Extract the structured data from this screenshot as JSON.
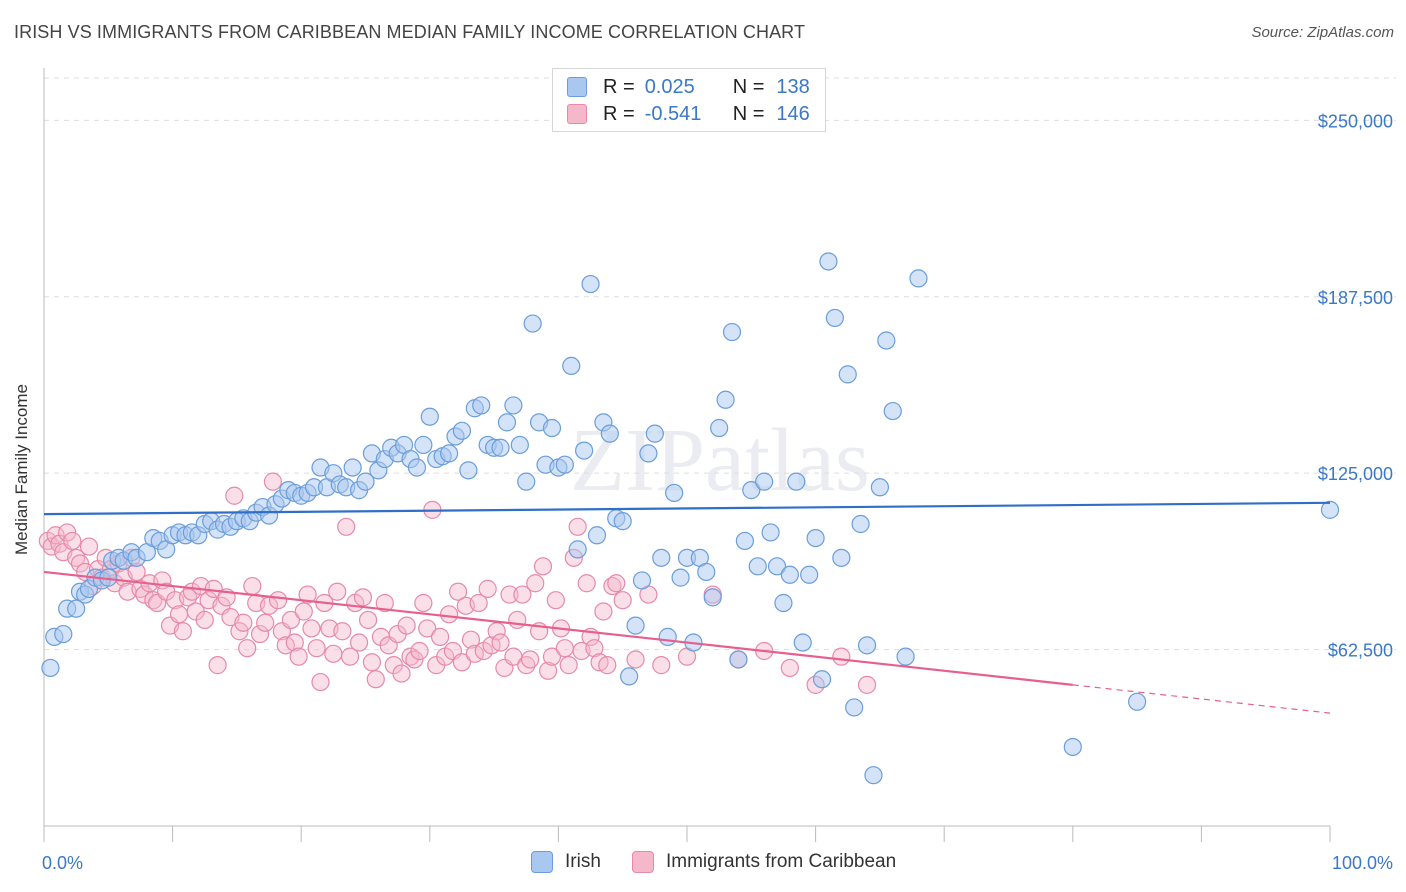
{
  "header": {
    "title": "IRISH VS IMMIGRANTS FROM CARIBBEAN MEDIAN FAMILY INCOME CORRELATION CHART",
    "source": "Source: ZipAtlas.com"
  },
  "legend_top": {
    "rows": [
      {
        "r_label": "R =",
        "r_value": "0.025",
        "n_label": "N =",
        "n_value": "138"
      },
      {
        "r_label": "R =",
        "r_value": "-0.541",
        "n_label": "N =",
        "n_value": "146"
      }
    ]
  },
  "legend_bottom": {
    "items": [
      {
        "label": "Irish"
      },
      {
        "label": "Immigrants from Caribbean"
      }
    ]
  },
  "colors": {
    "irish_fill": "#a9c8ef",
    "irish_stroke": "#6a9edb",
    "irish_line": "#2f6fc9",
    "carib_fill": "#f5b8cb",
    "carib_stroke": "#e68aa9",
    "carib_line": "#e65f8e",
    "tick_text": "#3a78c8",
    "grid": "#dddddd"
  },
  "watermark": "ZIPatlas",
  "chart_data": {
    "type": "scatter",
    "title": "IRISH VS IMMIGRANTS FROM CARIBBEAN MEDIAN FAMILY INCOME CORRELATION CHART",
    "xlabel": "",
    "ylabel": "Median Family Income",
    "xlim": [
      0,
      100
    ],
    "ylim": [
      0,
      265000
    ],
    "x_tick_labels": [
      "0.0%",
      "100.0%"
    ],
    "y_ticks": [
      62500,
      125000,
      187500,
      250000
    ],
    "y_tick_labels": [
      "$62,500",
      "$125,000",
      "$187,500",
      "$250,000"
    ],
    "grid": true,
    "legend_position": "top-center",
    "series": [
      {
        "name": "Irish",
        "r": 0.025,
        "n": 138,
        "trend": {
          "x": [
            0,
            100
          ],
          "y": [
            110500,
            114500
          ],
          "solid_until": 100
        },
        "points": [
          [
            0.5,
            56000
          ],
          [
            0.8,
            67000
          ],
          [
            1.5,
            68000
          ],
          [
            1.8,
            77000
          ],
          [
            2.5,
            77000
          ],
          [
            2.8,
            83000
          ],
          [
            3.2,
            82000
          ],
          [
            3.5,
            84000
          ],
          [
            4.0,
            88000
          ],
          [
            4.5,
            87000
          ],
          [
            5.0,
            88000
          ],
          [
            5.3,
            94000
          ],
          [
            5.8,
            95000
          ],
          [
            6.2,
            94000
          ],
          [
            6.8,
            97000
          ],
          [
            7.2,
            95000
          ],
          [
            8.0,
            97000
          ],
          [
            8.5,
            102000
          ],
          [
            9.0,
            101000
          ],
          [
            9.5,
            98000
          ],
          [
            10.0,
            103000
          ],
          [
            10.5,
            104000
          ],
          [
            11.0,
            103000
          ],
          [
            11.5,
            104000
          ],
          [
            12.0,
            103000
          ],
          [
            12.5,
            107000
          ],
          [
            13.0,
            108000
          ],
          [
            13.5,
            105000
          ],
          [
            14.0,
            107000
          ],
          [
            14.5,
            106000
          ],
          [
            15.0,
            108000
          ],
          [
            15.5,
            109000
          ],
          [
            16.0,
            108000
          ],
          [
            16.5,
            111000
          ],
          [
            17.0,
            113000
          ],
          [
            17.5,
            110000
          ],
          [
            18.0,
            114000
          ],
          [
            18.5,
            116000
          ],
          [
            19.0,
            119000
          ],
          [
            19.5,
            118000
          ],
          [
            20.0,
            117000
          ],
          [
            20.5,
            118000
          ],
          [
            21.0,
            120000
          ],
          [
            21.5,
            127000
          ],
          [
            22.0,
            120000
          ],
          [
            22.5,
            125000
          ],
          [
            23.0,
            121000
          ],
          [
            23.5,
            120000
          ],
          [
            24.0,
            127000
          ],
          [
            24.5,
            119000
          ],
          [
            25.0,
            122000
          ],
          [
            25.5,
            132000
          ],
          [
            26.0,
            126000
          ],
          [
            26.5,
            130000
          ],
          [
            27.0,
            134000
          ],
          [
            27.5,
            132000
          ],
          [
            28.0,
            135000
          ],
          [
            28.5,
            130000
          ],
          [
            29.0,
            127000
          ],
          [
            29.5,
            135000
          ],
          [
            30.0,
            145000
          ],
          [
            30.5,
            130000
          ],
          [
            31.0,
            131000
          ],
          [
            31.5,
            132000
          ],
          [
            32.0,
            138000
          ],
          [
            32.5,
            140000
          ],
          [
            33.0,
            126000
          ],
          [
            33.5,
            148000
          ],
          [
            34.0,
            149000
          ],
          [
            34.5,
            135000
          ],
          [
            35.0,
            134000
          ],
          [
            35.5,
            134000
          ],
          [
            36.0,
            143000
          ],
          [
            36.5,
            149000
          ],
          [
            37.0,
            135000
          ],
          [
            37.5,
            122000
          ],
          [
            38.0,
            178000
          ],
          [
            38.5,
            143000
          ],
          [
            39.0,
            128000
          ],
          [
            39.5,
            141000
          ],
          [
            40.0,
            127000
          ],
          [
            40.5,
            128000
          ],
          [
            41.0,
            163000
          ],
          [
            41.5,
            98000
          ],
          [
            42.0,
            133000
          ],
          [
            42.5,
            192000
          ],
          [
            43.0,
            103000
          ],
          [
            43.5,
            143000
          ],
          [
            44.0,
            139000
          ],
          [
            44.5,
            109000
          ],
          [
            45.0,
            108000
          ],
          [
            45.5,
            53000
          ],
          [
            46.0,
            71000
          ],
          [
            46.5,
            87000
          ],
          [
            47.0,
            132000
          ],
          [
            47.5,
            139000
          ],
          [
            48.0,
            95000
          ],
          [
            48.5,
            67000
          ],
          [
            49.0,
            118000
          ],
          [
            49.5,
            88000
          ],
          [
            50.0,
            95000
          ],
          [
            50.5,
            65000
          ],
          [
            51.0,
            95000
          ],
          [
            51.5,
            90000
          ],
          [
            52.0,
            81000
          ],
          [
            52.5,
            141000
          ],
          [
            53.0,
            151000
          ],
          [
            53.5,
            175000
          ],
          [
            54.0,
            59000
          ],
          [
            54.5,
            101000
          ],
          [
            55.0,
            119000
          ],
          [
            55.5,
            92000
          ],
          [
            56.0,
            122000
          ],
          [
            56.5,
            104000
          ],
          [
            57.0,
            92000
          ],
          [
            57.5,
            79000
          ],
          [
            58.0,
            89000
          ],
          [
            58.5,
            122000
          ],
          [
            59.0,
            65000
          ],
          [
            59.5,
            89000
          ],
          [
            60.0,
            102000
          ],
          [
            60.5,
            52000
          ],
          [
            61.0,
            200000
          ],
          [
            61.5,
            180000
          ],
          [
            62.0,
            95000
          ],
          [
            62.5,
            160000
          ],
          [
            63.0,
            42000
          ],
          [
            63.5,
            107000
          ],
          [
            64.0,
            64000
          ],
          [
            64.5,
            18000
          ],
          [
            65.0,
            120000
          ],
          [
            65.5,
            172000
          ],
          [
            66.0,
            147000
          ],
          [
            67.0,
            60000
          ],
          [
            68.0,
            194000
          ],
          [
            80.0,
            28000
          ],
          [
            85.0,
            44000
          ],
          [
            100.0,
            112000
          ]
        ]
      },
      {
        "name": "Immigrants from Caribbean",
        "r": -0.541,
        "n": 146,
        "trend": {
          "x": [
            0,
            100
          ],
          "y": [
            90000,
            40000
          ],
          "solid_until": 80
        },
        "points": [
          [
            0.3,
            101000
          ],
          [
            0.6,
            99000
          ],
          [
            0.9,
            103000
          ],
          [
            1.2,
            100000
          ],
          [
            1.5,
            97000
          ],
          [
            1.8,
            104000
          ],
          [
            2.2,
            101000
          ],
          [
            2.5,
            95000
          ],
          [
            2.8,
            93000
          ],
          [
            3.2,
            90000
          ],
          [
            3.5,
            99000
          ],
          [
            3.8,
            85000
          ],
          [
            4.2,
            91000
          ],
          [
            4.5,
            88000
          ],
          [
            4.8,
            95000
          ],
          [
            5.2,
            91000
          ],
          [
            5.5,
            86000
          ],
          [
            5.8,
            93000
          ],
          [
            6.2,
            88000
          ],
          [
            6.5,
            83000
          ],
          [
            6.8,
            95000
          ],
          [
            7.2,
            90000
          ],
          [
            7.5,
            84000
          ],
          [
            7.8,
            82000
          ],
          [
            8.2,
            86000
          ],
          [
            8.5,
            80000
          ],
          [
            8.8,
            79000
          ],
          [
            9.2,
            87000
          ],
          [
            9.5,
            83000
          ],
          [
            9.8,
            71000
          ],
          [
            10.2,
            80000
          ],
          [
            10.5,
            75000
          ],
          [
            10.8,
            69000
          ],
          [
            11.2,
            81000
          ],
          [
            11.5,
            83000
          ],
          [
            11.8,
            76000
          ],
          [
            12.2,
            85000
          ],
          [
            12.5,
            73000
          ],
          [
            12.8,
            80000
          ],
          [
            13.2,
            84000
          ],
          [
            13.5,
            57000
          ],
          [
            13.8,
            78000
          ],
          [
            14.2,
            81000
          ],
          [
            14.5,
            74000
          ],
          [
            14.8,
            117000
          ],
          [
            15.2,
            69000
          ],
          [
            15.5,
            72000
          ],
          [
            15.8,
            63000
          ],
          [
            16.2,
            85000
          ],
          [
            16.5,
            79000
          ],
          [
            16.8,
            68000
          ],
          [
            17.2,
            72000
          ],
          [
            17.5,
            78000
          ],
          [
            17.8,
            122000
          ],
          [
            18.2,
            80000
          ],
          [
            18.5,
            69000
          ],
          [
            18.8,
            64000
          ],
          [
            19.2,
            73000
          ],
          [
            19.5,
            65000
          ],
          [
            19.8,
            60000
          ],
          [
            20.2,
            76000
          ],
          [
            20.5,
            82000
          ],
          [
            20.8,
            70000
          ],
          [
            21.2,
            63000
          ],
          [
            21.5,
            51000
          ],
          [
            21.8,
            79000
          ],
          [
            22.2,
            70000
          ],
          [
            22.5,
            61000
          ],
          [
            22.8,
            83000
          ],
          [
            23.2,
            69000
          ],
          [
            23.5,
            106000
          ],
          [
            23.8,
            60000
          ],
          [
            24.2,
            79000
          ],
          [
            24.5,
            65000
          ],
          [
            24.8,
            81000
          ],
          [
            25.2,
            73000
          ],
          [
            25.5,
            58000
          ],
          [
            25.8,
            52000
          ],
          [
            26.2,
            67000
          ],
          [
            26.5,
            79000
          ],
          [
            26.8,
            64000
          ],
          [
            27.2,
            57000
          ],
          [
            27.5,
            68000
          ],
          [
            27.8,
            54000
          ],
          [
            28.2,
            71000
          ],
          [
            28.5,
            60000
          ],
          [
            28.8,
            59000
          ],
          [
            29.2,
            62000
          ],
          [
            29.5,
            79000
          ],
          [
            29.8,
            70000
          ],
          [
            30.2,
            112000
          ],
          [
            30.5,
            57000
          ],
          [
            30.8,
            67000
          ],
          [
            31.2,
            60000
          ],
          [
            31.5,
            75000
          ],
          [
            31.8,
            62000
          ],
          [
            32.2,
            83000
          ],
          [
            32.5,
            58000
          ],
          [
            32.8,
            78000
          ],
          [
            33.2,
            66000
          ],
          [
            33.5,
            61000
          ],
          [
            33.8,
            79000
          ],
          [
            34.2,
            62000
          ],
          [
            34.5,
            84000
          ],
          [
            34.8,
            64000
          ],
          [
            35.2,
            69000
          ],
          [
            35.5,
            65000
          ],
          [
            35.8,
            56000
          ],
          [
            36.2,
            82000
          ],
          [
            36.5,
            60000
          ],
          [
            36.8,
            73000
          ],
          [
            37.2,
            82000
          ],
          [
            37.5,
            57000
          ],
          [
            37.8,
            59000
          ],
          [
            38.2,
            86000
          ],
          [
            38.5,
            69000
          ],
          [
            38.8,
            92000
          ],
          [
            39.2,
            55000
          ],
          [
            39.5,
            60000
          ],
          [
            39.8,
            80000
          ],
          [
            40.2,
            70000
          ],
          [
            40.5,
            63000
          ],
          [
            40.8,
            57000
          ],
          [
            41.2,
            95000
          ],
          [
            41.5,
            106000
          ],
          [
            41.8,
            62000
          ],
          [
            42.2,
            86000
          ],
          [
            42.5,
            67000
          ],
          [
            42.8,
            63000
          ],
          [
            43.2,
            58000
          ],
          [
            43.5,
            76000
          ],
          [
            43.8,
            57000
          ],
          [
            44.2,
            85000
          ],
          [
            44.5,
            86000
          ],
          [
            45.0,
            80000
          ],
          [
            46.0,
            59000
          ],
          [
            47.0,
            82000
          ],
          [
            48.0,
            57000
          ],
          [
            50.0,
            60000
          ],
          [
            52.0,
            82000
          ],
          [
            54.0,
            59000
          ],
          [
            56.0,
            62000
          ],
          [
            58.0,
            56000
          ],
          [
            60.0,
            50000
          ],
          [
            62.0,
            60000
          ],
          [
            64.0,
            50000
          ]
        ]
      }
    ]
  }
}
